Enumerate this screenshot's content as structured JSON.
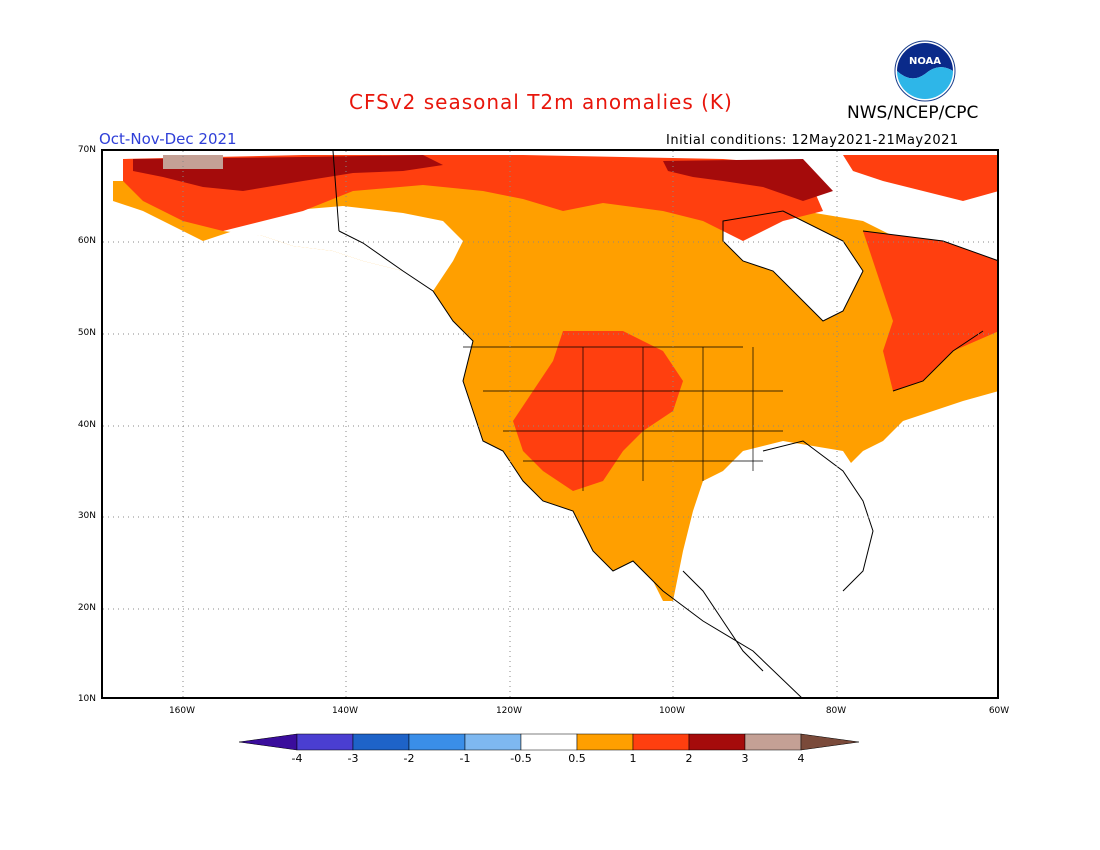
{
  "title": "CFSv2 seasonal T2m anomalies (K)",
  "agency": "NWS/NCEP/CPC",
  "logo_text": "NOAA",
  "season": "Oct-Nov-Dec 2021",
  "initial_conditions": "Initial conditions: 12May2021-21May2021",
  "map": {
    "projection": "equirectangular",
    "lat_range": [
      10,
      70
    ],
    "lon_range": [
      -170,
      -60
    ],
    "grid": "dotted",
    "lat_labels": [
      "70N",
      "60N",
      "50N",
      "40N",
      "30N",
      "20N",
      "10N"
    ],
    "lon_labels": [
      "160W",
      "140W",
      "120W",
      "100W",
      "80W",
      "60W"
    ]
  },
  "colorbar": {
    "labels": [
      "-4",
      "-3",
      "-2",
      "-1",
      "-0.5",
      "0.5",
      "1",
      "2",
      "3",
      "4"
    ],
    "colors": [
      "#3a0d9c",
      "#4a3ed1",
      "#1e63c8",
      "#3a8ee8",
      "#7eb8f0",
      "#ffffff",
      "#ff9f00",
      "#ff3f0f",
      "#a50b0b",
      "#c4a095",
      "#7a4a3a"
    ]
  },
  "anomaly_colors": {
    "low": "#ff9f00",
    "mid": "#ff3f0f",
    "high": "#a50b0b",
    "extreme": "#c4a095"
  }
}
